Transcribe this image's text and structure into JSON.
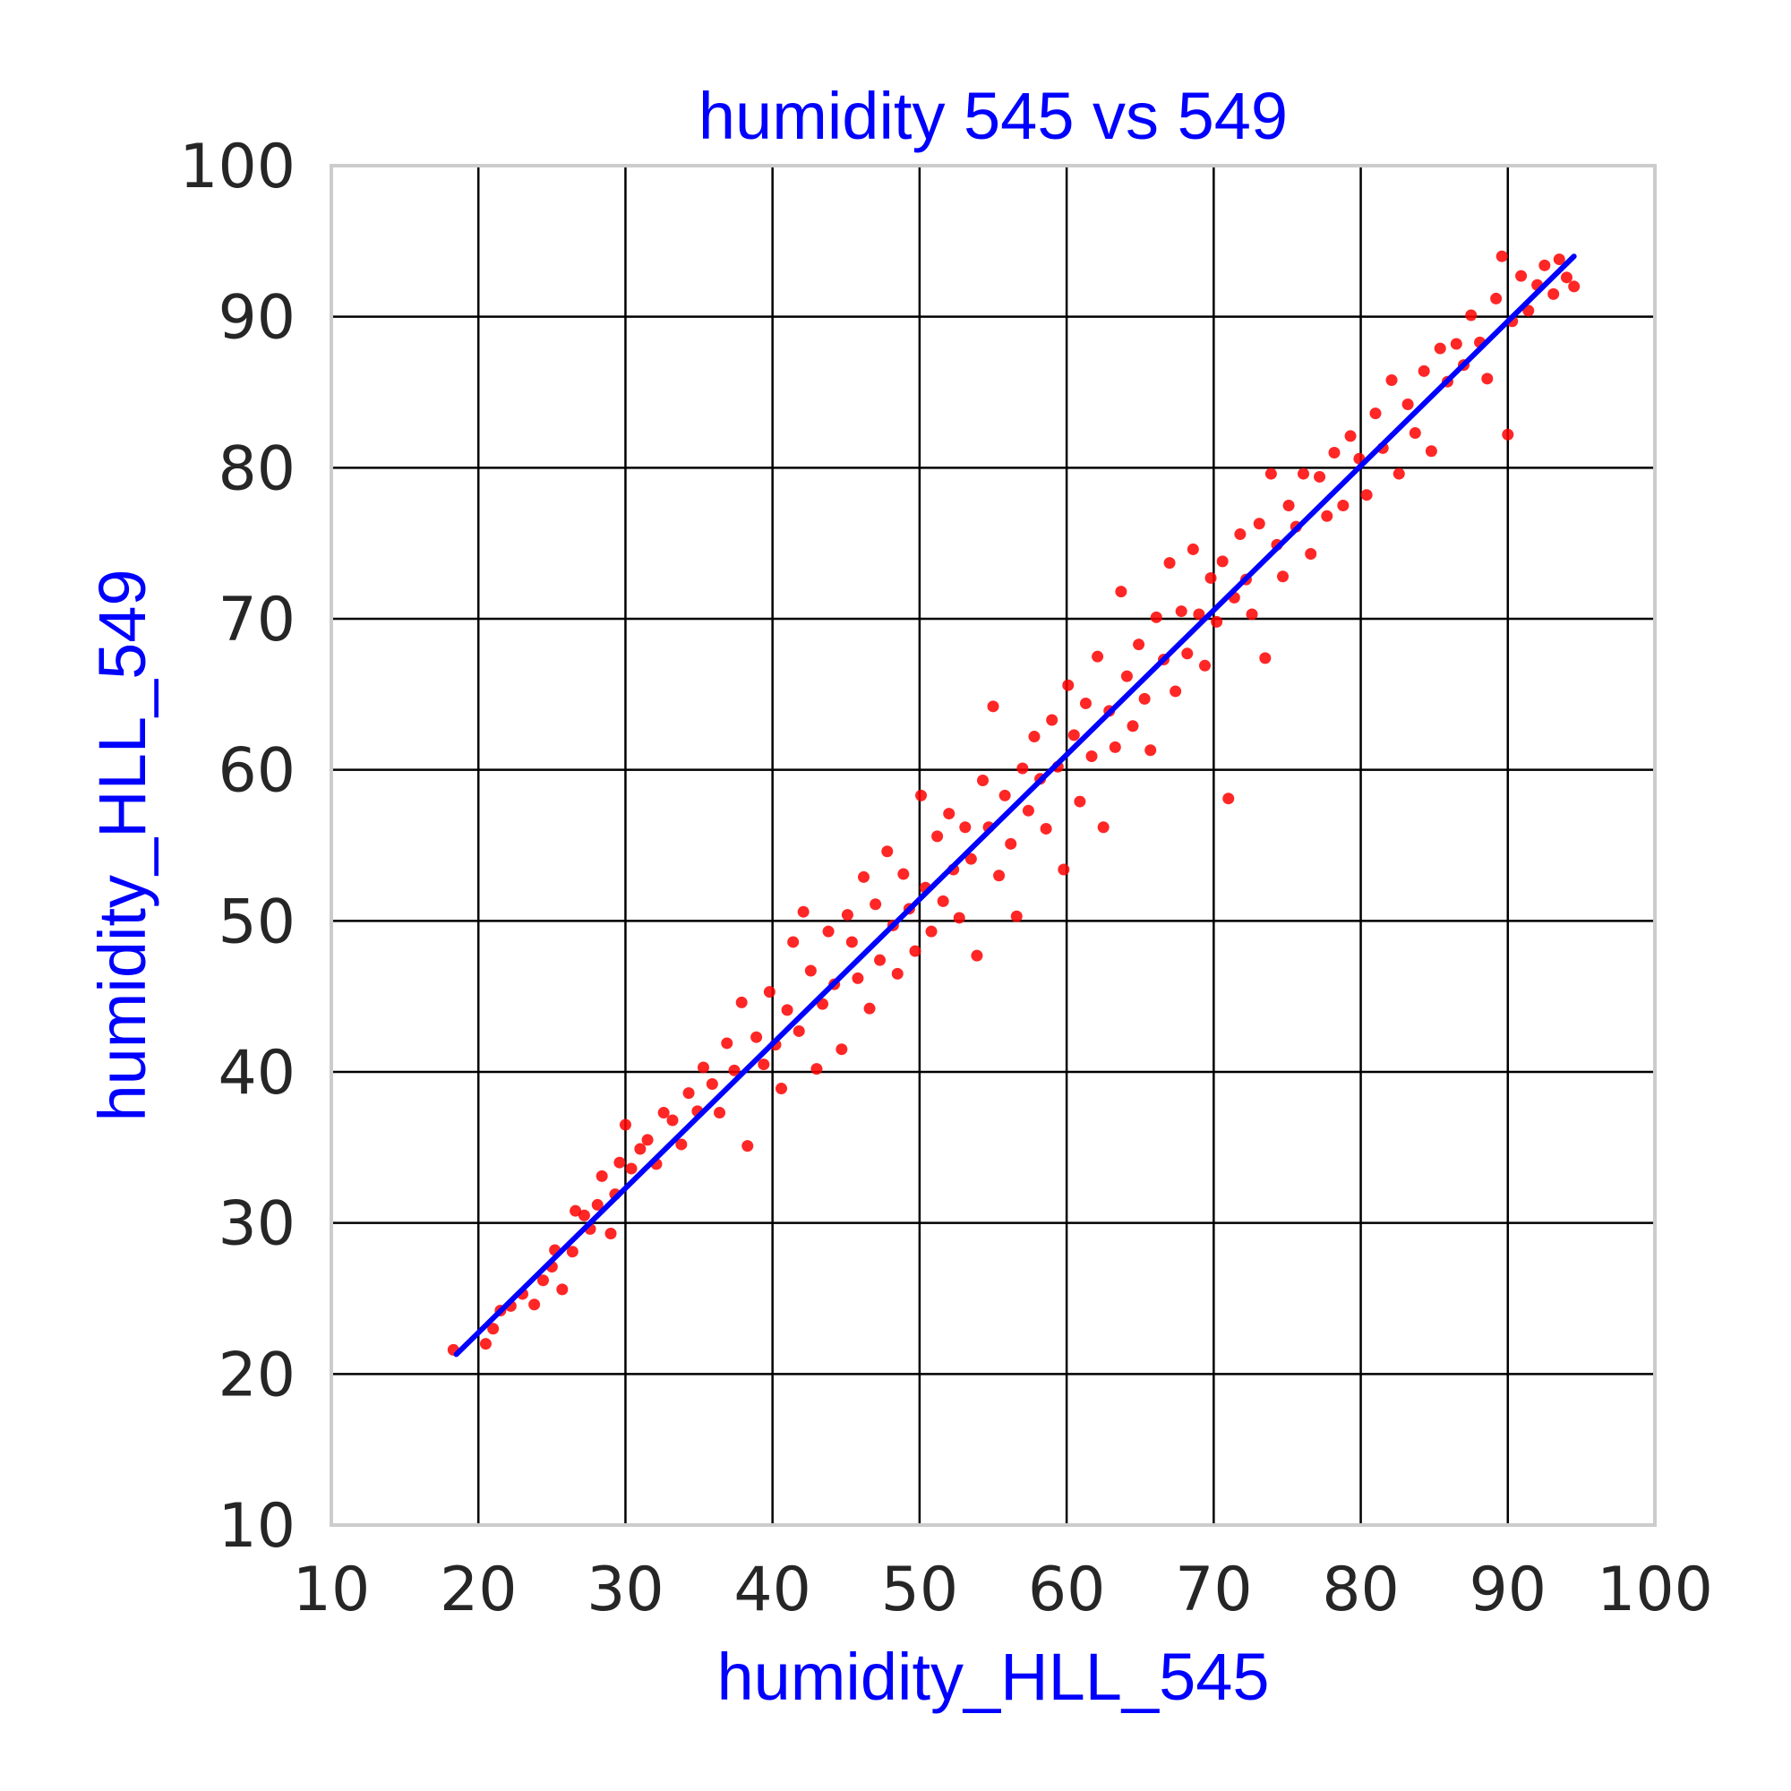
{
  "chart_data": {
    "type": "scatter",
    "title": "humidity 545 vs 549",
    "xlabel": "humidity_HLL_545",
    "ylabel": "humidity_HLL_549",
    "xlim": [
      10,
      100
    ],
    "ylim": [
      10,
      100
    ],
    "xticks": [
      "10",
      "20",
      "30",
      "40",
      "50",
      "60",
      "70",
      "80",
      "90",
      "100"
    ],
    "yticks": [
      "10",
      "20",
      "30",
      "40",
      "50",
      "60",
      "70",
      "80",
      "90",
      "100"
    ],
    "grid": true,
    "legend": "none",
    "colors": {
      "points": "#ff0000",
      "fit_line": "#0000ff",
      "title": "#0000ff",
      "labels": "#0000ff",
      "grid": "#000000",
      "frame": "#cccccc"
    },
    "fit_line": {
      "x": [
        18.5,
        94.5
      ],
      "y": [
        21.3,
        94.0
      ]
    },
    "points": [
      [
        18.3,
        21.6
      ],
      [
        20.5,
        22.0
      ],
      [
        21.0,
        23.0
      ],
      [
        21.5,
        24.2
      ],
      [
        22.2,
        24.5
      ],
      [
        23.0,
        25.3
      ],
      [
        23.8,
        24.6
      ],
      [
        24.4,
        26.2
      ],
      [
        25.0,
        27.1
      ],
      [
        25.2,
        28.2
      ],
      [
        25.7,
        25.6
      ],
      [
        26.4,
        28.1
      ],
      [
        26.6,
        30.8
      ],
      [
        27.2,
        30.5
      ],
      [
        27.6,
        29.6
      ],
      [
        28.1,
        31.2
      ],
      [
        28.4,
        33.1
      ],
      [
        29.0,
        29.3
      ],
      [
        29.3,
        31.9
      ],
      [
        29.6,
        34.0
      ],
      [
        30.0,
        36.5
      ],
      [
        30.4,
        33.6
      ],
      [
        31.0,
        34.9
      ],
      [
        31.5,
        35.5
      ],
      [
        32.1,
        33.9
      ],
      [
        32.6,
        37.3
      ],
      [
        33.2,
        36.8
      ],
      [
        33.8,
        35.2
      ],
      [
        34.3,
        38.6
      ],
      [
        34.9,
        37.4
      ],
      [
        35.3,
        40.3
      ],
      [
        35.9,
        39.2
      ],
      [
        36.4,
        37.3
      ],
      [
        36.9,
        41.9
      ],
      [
        37.4,
        40.1
      ],
      [
        37.9,
        44.6
      ],
      [
        38.3,
        35.1
      ],
      [
        38.9,
        42.3
      ],
      [
        39.4,
        40.5
      ],
      [
        39.8,
        45.3
      ],
      [
        40.2,
        41.8
      ],
      [
        40.6,
        38.9
      ],
      [
        41.0,
        44.1
      ],
      [
        41.4,
        48.6
      ],
      [
        41.8,
        42.7
      ],
      [
        42.1,
        50.6
      ],
      [
        42.6,
        46.7
      ],
      [
        43.0,
        40.2
      ],
      [
        43.4,
        44.5
      ],
      [
        43.8,
        49.3
      ],
      [
        44.2,
        45.8
      ],
      [
        44.7,
        41.5
      ],
      [
        45.1,
        50.4
      ],
      [
        45.4,
        48.6
      ],
      [
        45.8,
        46.2
      ],
      [
        46.2,
        52.9
      ],
      [
        46.6,
        44.2
      ],
      [
        47.0,
        51.1
      ],
      [
        47.3,
        47.4
      ],
      [
        47.8,
        54.6
      ],
      [
        48.2,
        49.7
      ],
      [
        48.5,
        46.5
      ],
      [
        48.9,
        53.1
      ],
      [
        49.3,
        50.8
      ],
      [
        49.7,
        48.0
      ],
      [
        50.1,
        58.3
      ],
      [
        50.4,
        52.2
      ],
      [
        50.8,
        49.3
      ],
      [
        51.2,
        55.6
      ],
      [
        51.6,
        51.3
      ],
      [
        52.0,
        57.1
      ],
      [
        52.3,
        53.4
      ],
      [
        52.7,
        50.2
      ],
      [
        53.1,
        56.2
      ],
      [
        53.5,
        54.1
      ],
      [
        53.9,
        47.7
      ],
      [
        54.3,
        59.3
      ],
      [
        54.7,
        56.2
      ],
      [
        55.0,
        64.2
      ],
      [
        55.4,
        53.0
      ],
      [
        55.8,
        58.3
      ],
      [
        56.2,
        55.1
      ],
      [
        56.6,
        50.3
      ],
      [
        57.0,
        60.1
      ],
      [
        57.4,
        57.3
      ],
      [
        57.8,
        62.2
      ],
      [
        58.2,
        59.4
      ],
      [
        58.6,
        56.1
      ],
      [
        59.0,
        63.3
      ],
      [
        59.4,
        60.2
      ],
      [
        59.8,
        53.4
      ],
      [
        60.1,
        65.6
      ],
      [
        60.5,
        62.3
      ],
      [
        60.9,
        57.9
      ],
      [
        61.3,
        64.4
      ],
      [
        61.7,
        60.9
      ],
      [
        62.1,
        67.5
      ],
      [
        62.5,
        56.2
      ],
      [
        62.9,
        63.9
      ],
      [
        63.3,
        61.5
      ],
      [
        63.7,
        71.8
      ],
      [
        64.1,
        66.2
      ],
      [
        64.5,
        62.9
      ],
      [
        64.9,
        68.3
      ],
      [
        65.3,
        64.7
      ],
      [
        65.7,
        61.3
      ],
      [
        66.1,
        70.1
      ],
      [
        66.6,
        67.3
      ],
      [
        67.0,
        73.7
      ],
      [
        67.4,
        65.2
      ],
      [
        67.8,
        70.5
      ],
      [
        68.2,
        67.7
      ],
      [
        68.6,
        74.6
      ],
      [
        69.0,
        70.3
      ],
      [
        69.4,
        66.9
      ],
      [
        69.8,
        72.7
      ],
      [
        70.2,
        69.8
      ],
      [
        70.6,
        73.8
      ],
      [
        71.0,
        58.1
      ],
      [
        71.4,
        71.4
      ],
      [
        71.8,
        75.6
      ],
      [
        72.2,
        72.6
      ],
      [
        72.6,
        70.3
      ],
      [
        73.1,
        76.3
      ],
      [
        73.5,
        67.4
      ],
      [
        73.9,
        79.6
      ],
      [
        74.3,
        74.9
      ],
      [
        74.7,
        72.8
      ],
      [
        75.1,
        77.5
      ],
      [
        75.6,
        76.1
      ],
      [
        76.1,
        79.6
      ],
      [
        76.6,
        74.3
      ],
      [
        77.2,
        79.4
      ],
      [
        77.7,
        76.8
      ],
      [
        78.2,
        81.0
      ],
      [
        78.8,
        77.5
      ],
      [
        79.3,
        82.1
      ],
      [
        79.9,
        80.6
      ],
      [
        80.4,
        78.2
      ],
      [
        81.0,
        83.6
      ],
      [
        81.5,
        81.3
      ],
      [
        82.1,
        85.8
      ],
      [
        82.6,
        79.6
      ],
      [
        83.2,
        84.2
      ],
      [
        83.7,
        82.3
      ],
      [
        84.3,
        86.4
      ],
      [
        84.8,
        81.1
      ],
      [
        85.4,
        87.9
      ],
      [
        85.9,
        85.7
      ],
      [
        86.5,
        88.2
      ],
      [
        87.0,
        86.8
      ],
      [
        87.5,
        90.1
      ],
      [
        88.1,
        88.3
      ],
      [
        88.6,
        85.9
      ],
      [
        89.2,
        91.2
      ],
      [
        89.6,
        94.0
      ],
      [
        90.0,
        82.2
      ],
      [
        90.3,
        89.7
      ],
      [
        90.9,
        92.7
      ],
      [
        91.4,
        90.4
      ],
      [
        92.0,
        92.1
      ],
      [
        92.5,
        93.4
      ],
      [
        93.1,
        91.5
      ],
      [
        93.5,
        93.8
      ],
      [
        94.0,
        92.6
      ],
      [
        94.5,
        92.0
      ]
    ]
  }
}
